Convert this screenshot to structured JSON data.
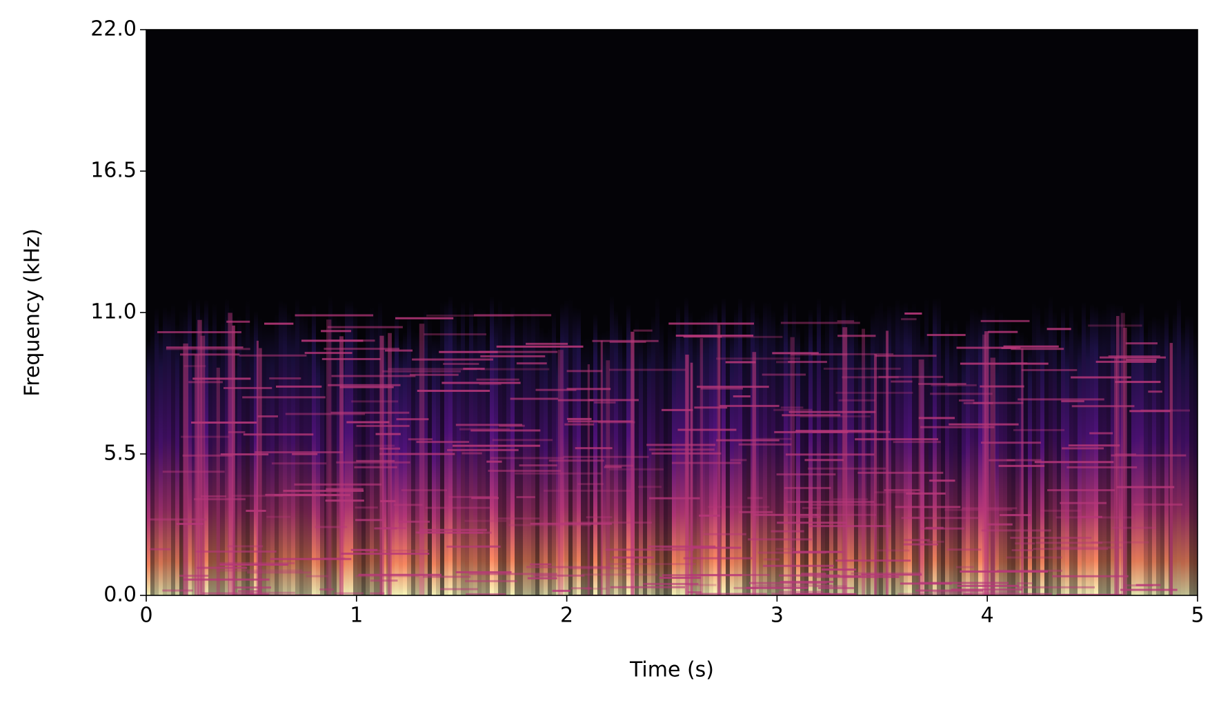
{
  "chart_data": {
    "type": "spectrogram",
    "xlabel": "Time (s)",
    "ylabel": "Frequency (kHz)",
    "xlim": [
      0,
      5
    ],
    "ylim": [
      0,
      22
    ],
    "xticks": [
      0,
      1,
      2,
      3,
      4,
      5
    ],
    "yticks": [
      {
        "value": 0,
        "label": "0.0"
      },
      {
        "value": 5.5,
        "label": "5.5"
      },
      {
        "value": 11,
        "label": "11.0"
      },
      {
        "value": 16.5,
        "label": "16.5"
      },
      {
        "value": 22,
        "label": "22.0"
      }
    ],
    "colormap": "magma"
  }
}
